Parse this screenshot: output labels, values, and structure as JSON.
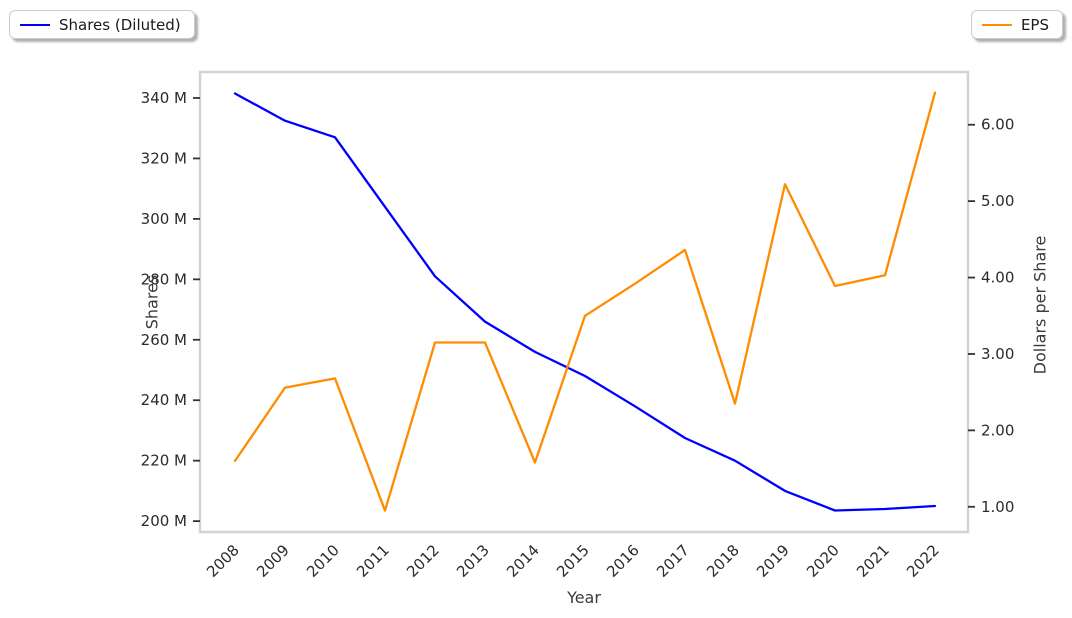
{
  "chart_data": {
    "type": "line",
    "title": "",
    "xlabel": "Year",
    "x_categories": [
      "2008",
      "2009",
      "2010",
      "2011",
      "2012",
      "2013",
      "2014",
      "2015",
      "2016",
      "2017",
      "2018",
      "2019",
      "2020",
      "2021",
      "2022"
    ],
    "series": [
      {
        "name": "Shares (Diluted)",
        "yaxis": "left",
        "color": "#0000ff",
        "values": [
          341.5,
          332.5,
          327,
          304,
          281,
          266,
          256,
          248,
          238,
          227.5,
          220,
          210,
          203.5,
          204,
          205
        ]
      },
      {
        "name": "EPS",
        "yaxis": "right",
        "color": "#ff8c00",
        "values": [
          1.6,
          2.56,
          2.68,
          0.95,
          3.15,
          3.15,
          1.58,
          3.5,
          3.92,
          4.36,
          2.35,
          5.22,
          3.89,
          4.03,
          6.42
        ]
      }
    ],
    "left_axis": {
      "label": "Shares",
      "unit": "M",
      "tick_values": [
        200,
        220,
        240,
        260,
        280,
        300,
        320,
        340
      ],
      "tick_labels": [
        "200 M",
        "220 M",
        "240 M",
        "260 M",
        "280 M",
        "300 M",
        "320 M",
        "340 M"
      ],
      "range": [
        196.4,
        348.6
      ]
    },
    "right_axis": {
      "label": "Dollars per Share",
      "tick_values": [
        1,
        2,
        3,
        4,
        5,
        6
      ],
      "tick_labels": [
        "1.00",
        "2.00",
        "3.00",
        "4.00",
        "5.00",
        "6.00"
      ],
      "range": [
        0.67,
        6.69
      ]
    },
    "x_index_range": [
      -0.7,
      14.66
    ],
    "grid": false,
    "x_tick_rotation_deg": 45,
    "legend": [
      {
        "label": "Shares (Diluted)",
        "color": "#0000ff",
        "position": "top-left"
      },
      {
        "label": "EPS",
        "color": "#ff8c00",
        "position": "top-right"
      }
    ],
    "colors": {
      "spine": "#d3d3d3",
      "tick_mark": "#333333",
      "tick_label": "#2b2b2b",
      "background": "#ffffff"
    }
  }
}
